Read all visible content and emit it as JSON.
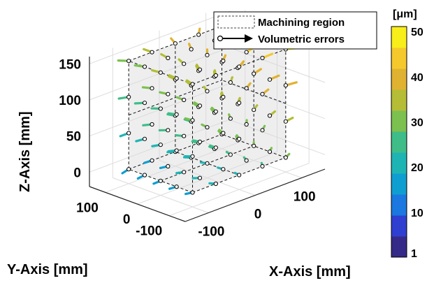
{
  "chart_data": {
    "type": "scatter",
    "subtype": "3d-quiver",
    "xlabel": "X-Axis [mm]",
    "ylabel": "Y-Axis [mm]",
    "zlabel": "Z-Axis [mm]",
    "xticks": [
      "-100",
      "0",
      "100"
    ],
    "yticks": [
      "-100",
      "0",
      "100"
    ],
    "zticks": [
      "0",
      "50",
      "100",
      "150"
    ],
    "xlim": [
      -150,
      150
    ],
    "ylim": [
      -150,
      150
    ],
    "zlim": [
      -20,
      160
    ],
    "grid": true,
    "legend_position": "top-right",
    "legend": [
      {
        "name": "Machining region",
        "style": "dashed-box"
      },
      {
        "name": "Volumetric errors",
        "style": "circle-arrow"
      }
    ],
    "colorbar": {
      "unit": "[μm]",
      "ticks": [
        "1",
        "10",
        "20",
        "30",
        "40",
        "50"
      ],
      "range": [
        1,
        50
      ],
      "colors": [
        "#352a87",
        "#2f3fd0",
        "#1a78e0",
        "#0f9ed0",
        "#1fb4b4",
        "#3ebd88",
        "#7cc050",
        "#b4bd35",
        "#e0b232",
        "#f5c92c",
        "#f8ee1a"
      ]
    },
    "machining_region": {
      "x": [
        -100,
        100
      ],
      "y": [
        -100,
        100
      ],
      "z": [
        0,
        150
      ]
    },
    "grid_points": {
      "x": [
        -100,
        -50,
        0,
        50,
        100
      ],
      "y": [
        -100,
        -50,
        0,
        50,
        100
      ],
      "z": [
        0,
        50,
        100,
        150
      ]
    },
    "error_range_um": [
      10,
      50
    ]
  }
}
